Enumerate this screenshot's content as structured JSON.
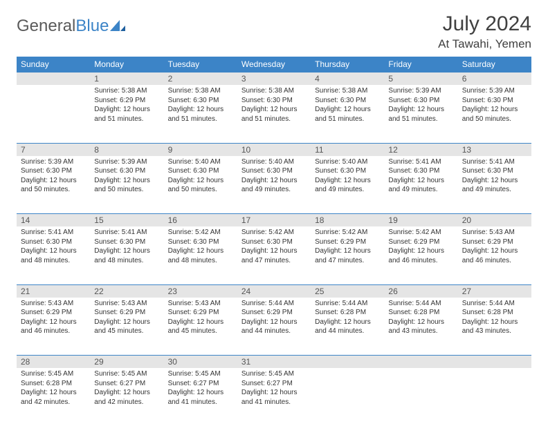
{
  "logo": {
    "part1": "General",
    "part2": "Blue"
  },
  "title": "July 2024",
  "location": "At Tawahi, Yemen",
  "colors": {
    "header_bg": "#3c84c7",
    "header_text": "#ffffff",
    "daynum_bg": "#e5e5e5",
    "border": "#3c84c7",
    "text": "#333333",
    "logo_gray": "#5a5a5a",
    "logo_blue": "#3c84c7"
  },
  "weekdays": [
    "Sunday",
    "Monday",
    "Tuesday",
    "Wednesday",
    "Thursday",
    "Friday",
    "Saturday"
  ],
  "weeks": [
    [
      null,
      {
        "n": "1",
        "sr": "5:38 AM",
        "ss": "6:29 PM",
        "dl": "12 hours and 51 minutes."
      },
      {
        "n": "2",
        "sr": "5:38 AM",
        "ss": "6:30 PM",
        "dl": "12 hours and 51 minutes."
      },
      {
        "n": "3",
        "sr": "5:38 AM",
        "ss": "6:30 PM",
        "dl": "12 hours and 51 minutes."
      },
      {
        "n": "4",
        "sr": "5:38 AM",
        "ss": "6:30 PM",
        "dl": "12 hours and 51 minutes."
      },
      {
        "n": "5",
        "sr": "5:39 AM",
        "ss": "6:30 PM",
        "dl": "12 hours and 51 minutes."
      },
      {
        "n": "6",
        "sr": "5:39 AM",
        "ss": "6:30 PM",
        "dl": "12 hours and 50 minutes."
      }
    ],
    [
      {
        "n": "7",
        "sr": "5:39 AM",
        "ss": "6:30 PM",
        "dl": "12 hours and 50 minutes."
      },
      {
        "n": "8",
        "sr": "5:39 AM",
        "ss": "6:30 PM",
        "dl": "12 hours and 50 minutes."
      },
      {
        "n": "9",
        "sr": "5:40 AM",
        "ss": "6:30 PM",
        "dl": "12 hours and 50 minutes."
      },
      {
        "n": "10",
        "sr": "5:40 AM",
        "ss": "6:30 PM",
        "dl": "12 hours and 49 minutes."
      },
      {
        "n": "11",
        "sr": "5:40 AM",
        "ss": "6:30 PM",
        "dl": "12 hours and 49 minutes."
      },
      {
        "n": "12",
        "sr": "5:41 AM",
        "ss": "6:30 PM",
        "dl": "12 hours and 49 minutes."
      },
      {
        "n": "13",
        "sr": "5:41 AM",
        "ss": "6:30 PM",
        "dl": "12 hours and 49 minutes."
      }
    ],
    [
      {
        "n": "14",
        "sr": "5:41 AM",
        "ss": "6:30 PM",
        "dl": "12 hours and 48 minutes."
      },
      {
        "n": "15",
        "sr": "5:41 AM",
        "ss": "6:30 PM",
        "dl": "12 hours and 48 minutes."
      },
      {
        "n": "16",
        "sr": "5:42 AM",
        "ss": "6:30 PM",
        "dl": "12 hours and 48 minutes."
      },
      {
        "n": "17",
        "sr": "5:42 AM",
        "ss": "6:30 PM",
        "dl": "12 hours and 47 minutes."
      },
      {
        "n": "18",
        "sr": "5:42 AM",
        "ss": "6:29 PM",
        "dl": "12 hours and 47 minutes."
      },
      {
        "n": "19",
        "sr": "5:42 AM",
        "ss": "6:29 PM",
        "dl": "12 hours and 46 minutes."
      },
      {
        "n": "20",
        "sr": "5:43 AM",
        "ss": "6:29 PM",
        "dl": "12 hours and 46 minutes."
      }
    ],
    [
      {
        "n": "21",
        "sr": "5:43 AM",
        "ss": "6:29 PM",
        "dl": "12 hours and 46 minutes."
      },
      {
        "n": "22",
        "sr": "5:43 AM",
        "ss": "6:29 PM",
        "dl": "12 hours and 45 minutes."
      },
      {
        "n": "23",
        "sr": "5:43 AM",
        "ss": "6:29 PM",
        "dl": "12 hours and 45 minutes."
      },
      {
        "n": "24",
        "sr": "5:44 AM",
        "ss": "6:29 PM",
        "dl": "12 hours and 44 minutes."
      },
      {
        "n": "25",
        "sr": "5:44 AM",
        "ss": "6:28 PM",
        "dl": "12 hours and 44 minutes."
      },
      {
        "n": "26",
        "sr": "5:44 AM",
        "ss": "6:28 PM",
        "dl": "12 hours and 43 minutes."
      },
      {
        "n": "27",
        "sr": "5:44 AM",
        "ss": "6:28 PM",
        "dl": "12 hours and 43 minutes."
      }
    ],
    [
      {
        "n": "28",
        "sr": "5:45 AM",
        "ss": "6:28 PM",
        "dl": "12 hours and 42 minutes."
      },
      {
        "n": "29",
        "sr": "5:45 AM",
        "ss": "6:27 PM",
        "dl": "12 hours and 42 minutes."
      },
      {
        "n": "30",
        "sr": "5:45 AM",
        "ss": "6:27 PM",
        "dl": "12 hours and 41 minutes."
      },
      {
        "n": "31",
        "sr": "5:45 AM",
        "ss": "6:27 PM",
        "dl": "12 hours and 41 minutes."
      },
      null,
      null,
      null
    ]
  ],
  "labels": {
    "sunrise": "Sunrise:",
    "sunset": "Sunset:",
    "daylight": "Daylight:"
  }
}
